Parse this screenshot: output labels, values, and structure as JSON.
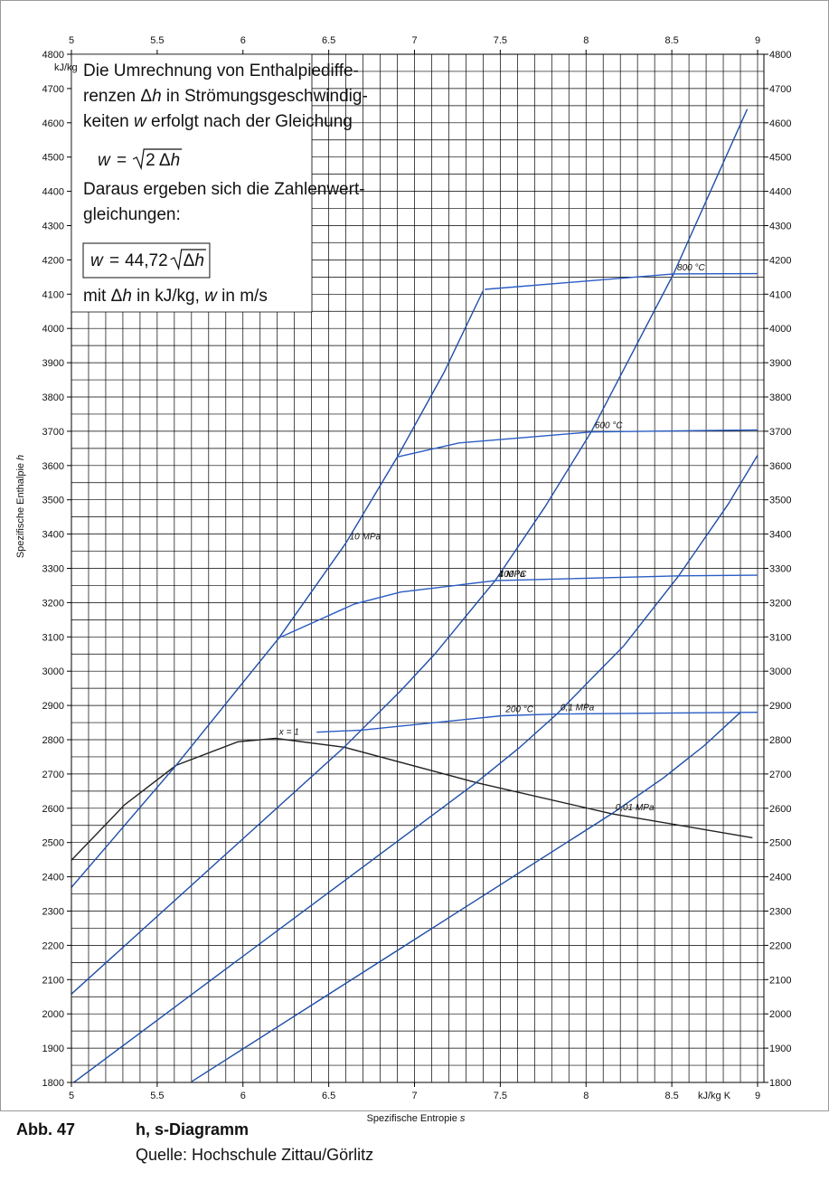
{
  "chart_data": {
    "type": "line",
    "xlim": [
      5,
      9
    ],
    "ylim": [
      1800,
      4800
    ],
    "xticks": [
      5,
      5.5,
      6,
      6.5,
      7,
      7.5,
      8,
      8.5,
      9
    ],
    "yticks": [
      1800,
      1900,
      2000,
      2100,
      2200,
      2300,
      2400,
      2500,
      2600,
      2700,
      2800,
      2900,
      3000,
      3100,
      3200,
      3300,
      3400,
      3500,
      3600,
      3700,
      3800,
      3900,
      4000,
      4100,
      4200,
      4300,
      4400,
      4500,
      4600,
      4700,
      4800
    ],
    "grid": true,
    "x_grid": [
      5,
      5.1,
      5.2,
      5.3,
      5.4,
      5.5,
      5.6,
      5.7,
      5.8,
      5.9,
      6,
      6.1,
      6.2,
      6.3,
      6.4,
      6.5,
      6.6,
      6.7,
      6.8,
      6.9,
      7,
      7.1,
      7.2,
      7.3,
      7.4,
      7.5,
      7.6,
      7.7,
      7.8,
      7.9,
      8,
      8.1,
      8.2,
      8.3,
      8.4,
      8.5,
      8.6,
      8.7,
      8.8,
      8.9,
      9
    ],
    "y_grid": [
      1800,
      1850,
      1900,
      1950,
      2000,
      2050,
      2100,
      2150,
      2200,
      2250,
      2300,
      2350,
      2400,
      2450,
      2500,
      2550,
      2600,
      2650,
      2700,
      2750,
      2800,
      2850,
      2900,
      2950,
      3000,
      3050,
      3100,
      3150,
      3200,
      3250,
      3300,
      3350,
      3400,
      3450,
      3500,
      3550,
      3600,
      3650,
      3700,
      3750,
      3800,
      3850,
      3900,
      3950,
      4000,
      4050,
      4100,
      4150,
      4200,
      4250,
      4300,
      4350,
      4400,
      4450,
      4500,
      4550,
      4600,
      4650,
      4700,
      4750,
      4800
    ],
    "y_unit": "kJ/kg",
    "x_unit": "kJ/kg K",
    "x_label": [
      {
        "text": "Spezifische Entropie "
      },
      {
        "text": "s",
        "italic": true
      }
    ],
    "y_label": [
      {
        "text": "Spezifische Enthalpie "
      },
      {
        "text": "h",
        "italic": true
      }
    ],
    "series": [
      {
        "name": "x = 1",
        "color": "#222222",
        "x": [
          4.93,
          5.31,
          5.61,
          5.97,
          6.19,
          6.59,
          7.36,
          8.15,
          8.97
        ],
        "values": [
          2412,
          2610,
          2725,
          2794,
          2804,
          2778,
          2675,
          2584,
          2514
        ]
      },
      {
        "name": "10 MPa",
        "color": "#1f4ea8",
        "x": [
          5.0,
          5.61,
          6.21,
          6.6,
          6.9,
          7.17,
          7.4
        ],
        "values": [
          2369,
          2725,
          3097,
          3374,
          3625,
          3870,
          4110
        ]
      },
      {
        "name": "1 MPa",
        "color": "#1f4ea8",
        "x": [
          5.0,
          6.0,
          6.59,
          6.92,
          7.12,
          7.47,
          7.76,
          8.03,
          8.51,
          8.94
        ],
        "values": [
          2058,
          2511,
          2778,
          2943,
          3051,
          3264,
          3479,
          3698,
          4159,
          4640
        ]
      },
      {
        "name": "0,1 MPa",
        "color": "#1f4ea8",
        "x": [
          5.0,
          6.0,
          7.36,
          7.61,
          7.83,
          8.22,
          8.54,
          8.83,
          9.0
        ],
        "values": [
          1795,
          2168,
          2675,
          2776,
          2875,
          3074,
          3278,
          3488,
          3630
        ]
      },
      {
        "name": "0,01 MPa",
        "color": "#1f4ea8",
        "x": [
          5.7,
          6.0,
          7.0,
          8.15,
          8.45,
          8.69,
          8.9
        ],
        "values": [
          1802,
          1898,
          2217,
          2584,
          2688,
          2783,
          2880
        ]
      },
      {
        "name": "200 °C",
        "color": "#2a5cc4",
        "x": [
          6.43,
          6.69,
          7.51,
          7.83,
          9.0
        ],
        "values": [
          2822,
          2828,
          2870,
          2875,
          2880
        ]
      },
      {
        "name": "400 °C",
        "color": "#2a5cc4",
        "x": [
          6.21,
          6.65,
          6.92,
          7.47,
          8.54,
          9.0
        ],
        "values": [
          3097,
          3196,
          3231,
          3264,
          3278,
          3280
        ]
      },
      {
        "name": "600 °C",
        "color": "#2a5cc4",
        "x": [
          6.9,
          7.26,
          8.03,
          9.0
        ],
        "values": [
          3625,
          3666,
          3698,
          3704
        ]
      },
      {
        "name": "800 °C",
        "color": "#2a5cc4",
        "x": [
          7.41,
          8.51,
          9.0
        ],
        "values": [
          4114,
          4159,
          4160
        ]
      }
    ],
    "annotation": {
      "lines": [
        [
          {
            "text": "Die Umrechnung von Enthalpiediffe-"
          }
        ],
        [
          {
            "text": "renzen Δ"
          },
          {
            "text": "h",
            "italic": true
          },
          {
            "text": " in Strömungsgeschwindig-"
          }
        ],
        [
          {
            "text": "keiten "
          },
          {
            "text": "w",
            "italic": true
          },
          {
            "text": " erfolgt nach der Gleichung"
          }
        ],
        [
          {
            "text": "Daraus ergeben sich die Zahlenwert-"
          }
        ],
        [
          {
            "text": "gleichungen:"
          }
        ],
        [
          {
            "text": "mit Δ"
          },
          {
            "text": "h",
            "italic": true
          },
          {
            "text": " in kJ/kg, "
          },
          {
            "text": "w",
            "italic": true
          },
          {
            "text": " in m/s"
          }
        ]
      ],
      "formula_1": {
        "lhs": "w",
        "op": "=",
        "radicand": [
          {
            "text": "2 Δ"
          },
          {
            "text": "h",
            "italic": true
          }
        ]
      },
      "formula_2": {
        "lhs": "w",
        "op": "=",
        "coef": "44,72",
        "radicand": [
          {
            "text": "Δ"
          },
          {
            "text": "h",
            "italic": true
          }
        ]
      }
    },
    "caption": {
      "number": "Abb. 47",
      "title": "h, s-Diagramm",
      "source": "Quelle: Hochschule Zittau/Görlitz"
    }
  }
}
